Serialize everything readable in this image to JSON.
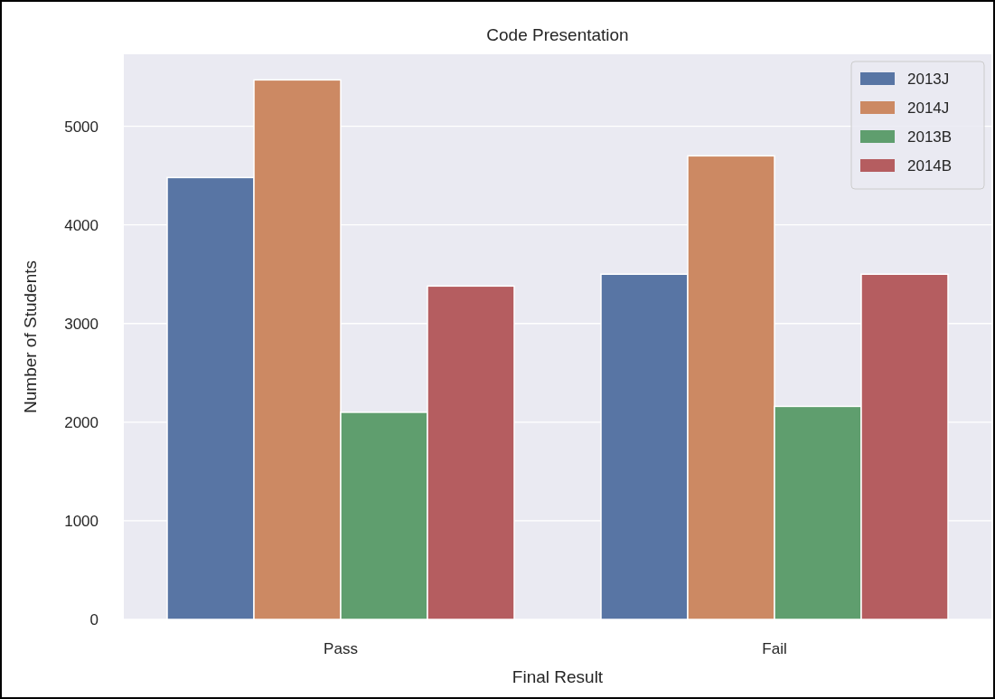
{
  "chart_data": {
    "type": "bar",
    "title": "Code Presentation",
    "xlabel": "Final Result",
    "ylabel": "Number of Students",
    "categories": [
      "Pass",
      "Fail"
    ],
    "series": [
      {
        "name": "2013J",
        "color": "#5875a4",
        "values": [
          4480,
          3500
        ]
      },
      {
        "name": "2014J",
        "color": "#cc8963",
        "values": [
          5470,
          4700
        ]
      },
      {
        "name": "2013B",
        "color": "#5f9e6e",
        "values": [
          2100,
          2160
        ]
      },
      {
        "name": "2014B",
        "color": "#b55d60",
        "values": [
          3380,
          3500
        ]
      }
    ],
    "ylim": [
      0,
      5730
    ],
    "yticks": [
      0,
      1000,
      2000,
      3000,
      4000,
      5000
    ],
    "grid": "y",
    "legend": "top right"
  }
}
